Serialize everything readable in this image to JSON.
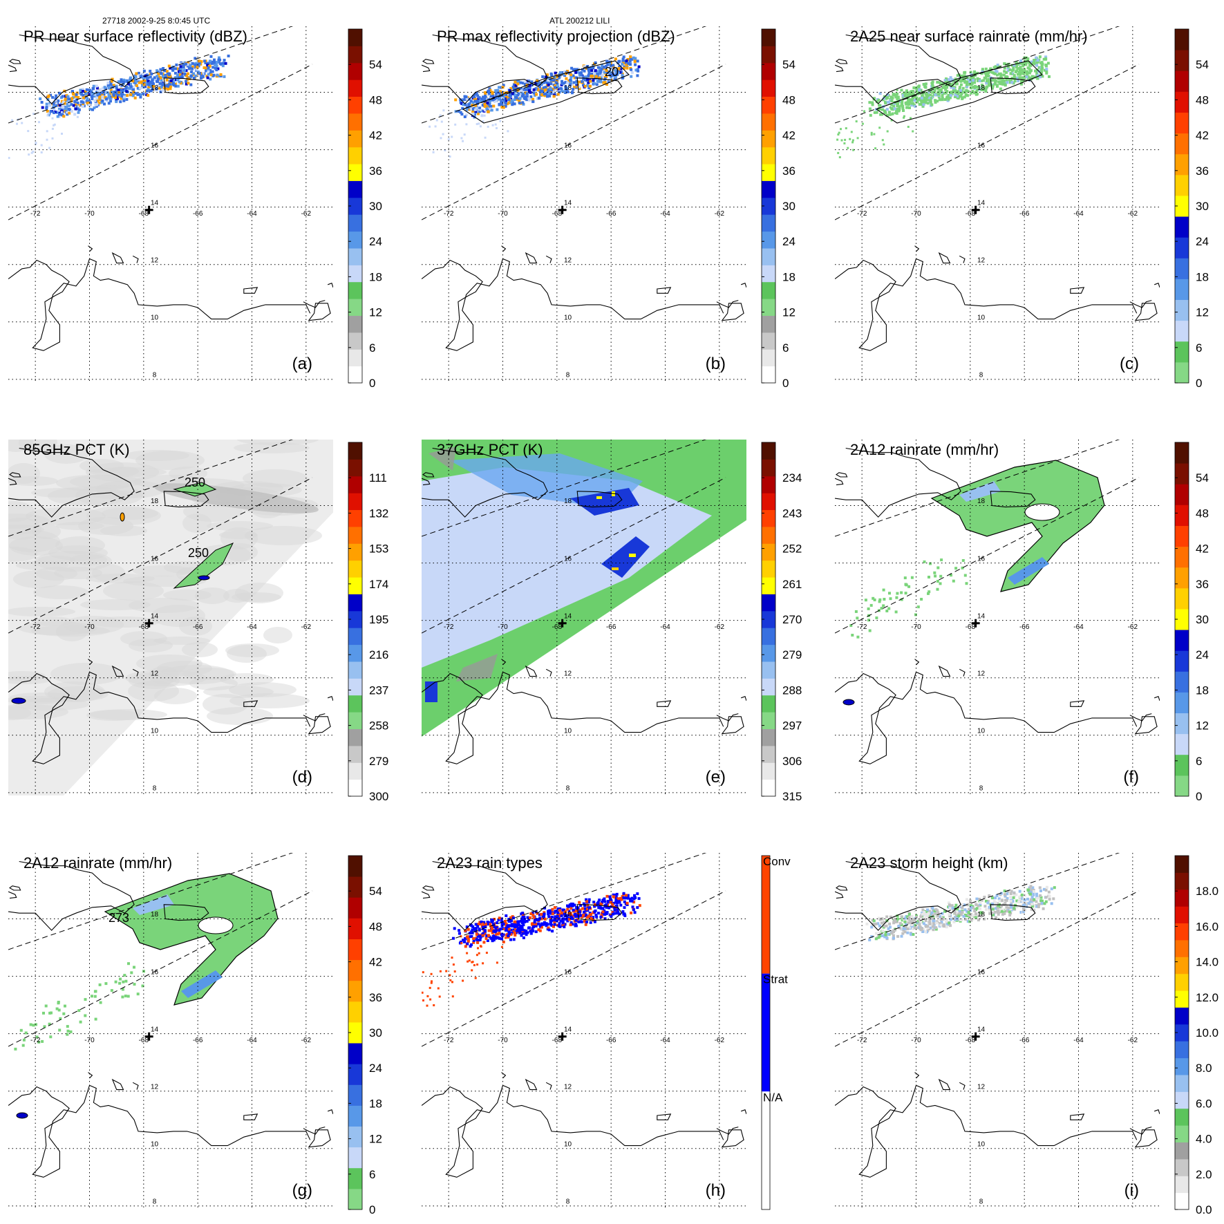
{
  "header": {
    "left": "27718 2002-9-25 8:0:45 UTC",
    "center": "ATL 200212 LILI"
  },
  "map": {
    "lon_labels": [
      "-72",
      "-70",
      "-68",
      "-66",
      "-64",
      "-62"
    ],
    "lat_labels": [
      "18",
      "16",
      "14",
      "12",
      "10",
      "8"
    ]
  },
  "chart_data": [
    {
      "type": "heatmap",
      "title": "PR near surface reflectivity (dBZ)",
      "panel_label": "(a)",
      "colorbar_ticks": [
        "0",
        "6",
        "12",
        "18",
        "24",
        "30",
        "36",
        "42",
        "48",
        "54"
      ],
      "colorbar_range": [
        0,
        60
      ],
      "contours": [],
      "field": "pr_reflectivity"
    },
    {
      "type": "heatmap",
      "title": "PR max reflectivity projection (dBZ)",
      "panel_label": "(b)",
      "colorbar_ticks": [
        "0",
        "6",
        "12",
        "18",
        "24",
        "30",
        "36",
        "42",
        "48",
        "54"
      ],
      "colorbar_range": [
        0,
        60
      ],
      "contours": [
        "20"
      ],
      "field": "pr_max_reflectivity"
    },
    {
      "type": "heatmap",
      "title": "2A25 near surface rainrate (mm/hr)",
      "panel_label": "(c)",
      "colorbar_ticks": [
        "0",
        "6",
        "12",
        "18",
        "24",
        "30",
        "36",
        "42",
        "48",
        "54"
      ],
      "colorbar_range": [
        0,
        60
      ],
      "contours": [],
      "field": "2a25_rainrate"
    },
    {
      "type": "heatmap",
      "title": "85GHz PCT (K)",
      "panel_label": "(d)",
      "colorbar_ticks": [
        "300",
        "279",
        "258",
        "237",
        "216",
        "195",
        "174",
        "153",
        "132",
        "111"
      ],
      "colorbar_range": [
        300,
        90
      ],
      "contours": [
        "250",
        "250"
      ],
      "field": "pct85"
    },
    {
      "type": "heatmap",
      "title": "37GHz PCT (K)",
      "panel_label": "(e)",
      "colorbar_ticks": [
        "315",
        "306",
        "297",
        "288",
        "279",
        "270",
        "261",
        "252",
        "243",
        "234"
      ],
      "colorbar_range": [
        315,
        225
      ],
      "contours": [],
      "field": "pct37"
    },
    {
      "type": "heatmap",
      "title": "2A12 rainrate (mm/hr)",
      "panel_label": "(f)",
      "colorbar_ticks": [
        "0",
        "6",
        "12",
        "18",
        "24",
        "30",
        "36",
        "42",
        "48",
        "54"
      ],
      "colorbar_range": [
        0,
        60
      ],
      "contours": [],
      "field": "2a12_rainrate_f"
    },
    {
      "type": "heatmap",
      "title": "2A12 rainrate (mm/hr)",
      "panel_label": "(g)",
      "colorbar_ticks": [
        "0",
        "6",
        "12",
        "18",
        "24",
        "30",
        "36",
        "42",
        "48",
        "54"
      ],
      "colorbar_range": [
        0,
        60
      ],
      "contours": [
        "273"
      ],
      "field": "2a12_rainrate_g"
    },
    {
      "type": "heatmap",
      "title": "2A23 rain types",
      "panel_label": "(h)",
      "colorbar_ticks": [
        "N/A",
        "Strat",
        "Conv"
      ],
      "colorbar_range": [
        0,
        3
      ],
      "contours": [],
      "field": "rain_types"
    },
    {
      "type": "heatmap",
      "title": "2A23 storm height (km)",
      "panel_label": "(i)",
      "colorbar_ticks": [
        "0.0",
        "2.0",
        "4.0",
        "6.0",
        "8.0",
        "10.0",
        "12.0",
        "14.0",
        "16.0",
        "18.0"
      ],
      "colorbar_range": [
        0,
        20
      ],
      "contours": [],
      "field": "storm_height"
    }
  ],
  "colors": {
    "colorbar_standard": [
      "#ffffff",
      "#e8e8e8",
      "#c8c8c8",
      "#a0a0a0",
      "#86d886",
      "#5cc45c",
      "#c8d8f8",
      "#98c0f0",
      "#5898e8",
      "#3870e0",
      "#1838d8",
      "#0000c8",
      "#ffff00",
      "#ffd000",
      "#ffa000",
      "#ff7000",
      "#ff4000",
      "#e01000",
      "#b00000",
      "#7a1000",
      "#501000"
    ],
    "colorbar_rain": [
      "#86d886",
      "#5cc45c",
      "#c8d8f8",
      "#98c0f0",
      "#5898e8",
      "#3870e0",
      "#1838d8",
      "#0000c8",
      "#ffff00",
      "#ffd000",
      "#ffa000",
      "#ff7000",
      "#ff4000",
      "#e01000",
      "#b00000",
      "#7a1000",
      "#501000"
    ],
    "rain_types": [
      "#ffffff",
      "#0000ff",
      "#ff4400"
    ]
  }
}
